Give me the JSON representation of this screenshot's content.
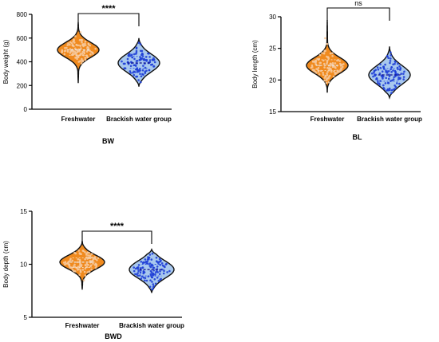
{
  "chart_data": [
    {
      "type": "violin",
      "title": "BW",
      "xlabel": "",
      "ylabel": "Body weight (g)",
      "ylim": [
        0,
        800
      ],
      "yticks": [
        0,
        200,
        400,
        600,
        800
      ],
      "categories": [
        "Freshwater",
        "Brackish water group"
      ],
      "significance": "****",
      "colors": {
        "fill": [
          "#f08a1e",
          "#a8c8ee"
        ],
        "points": [
          "#f6c89a",
          "#1f3fd6"
        ]
      },
      "violins": [
        {
          "min": 220,
          "max": 735,
          "median": 500,
          "q1": 455,
          "q3": 540
        },
        {
          "min": 190,
          "max": 600,
          "median": 390,
          "q1": 345,
          "q3": 445
        }
      ]
    },
    {
      "type": "violin",
      "title": "BL",
      "xlabel": "",
      "ylabel": "Body length (cm)",
      "ylim": [
        15,
        30
      ],
      "yticks": [
        15,
        20,
        25,
        30
      ],
      "categories": [
        "Freshwater",
        "Brackish water group"
      ],
      "significance": "ns",
      "colors": {
        "fill": [
          "#f08a1e",
          "#a8c8ee"
        ],
        "points": [
          "#f6c89a",
          "#1f3fd6"
        ]
      },
      "violins": [
        {
          "min": 18.0,
          "max": 29.5,
          "median": 22.3,
          "q1": 21.5,
          "q3": 23.2
        },
        {
          "min": 17.2,
          "max": 25.3,
          "median": 20.8,
          "q1": 19.8,
          "q3": 21.8
        }
      ]
    },
    {
      "type": "violin",
      "title": "BWD",
      "xlabel": "",
      "ylabel": "Body depth (cm)",
      "ylim": [
        5,
        15
      ],
      "yticks": [
        5,
        10,
        15
      ],
      "categories": [
        "Freshwater",
        "Brackish water group"
      ],
      "significance": "****",
      "colors": {
        "fill": [
          "#f08a1e",
          "#a8c8ee"
        ],
        "points": [
          "#f6c89a",
          "#1f3fd6"
        ]
      },
      "violins": [
        {
          "min": 7.6,
          "max": 12.2,
          "median": 10.2,
          "q1": 9.7,
          "q3": 10.6
        },
        {
          "min": 7.3,
          "max": 11.4,
          "median": 9.5,
          "q1": 8.9,
          "q3": 10.0
        }
      ]
    }
  ]
}
